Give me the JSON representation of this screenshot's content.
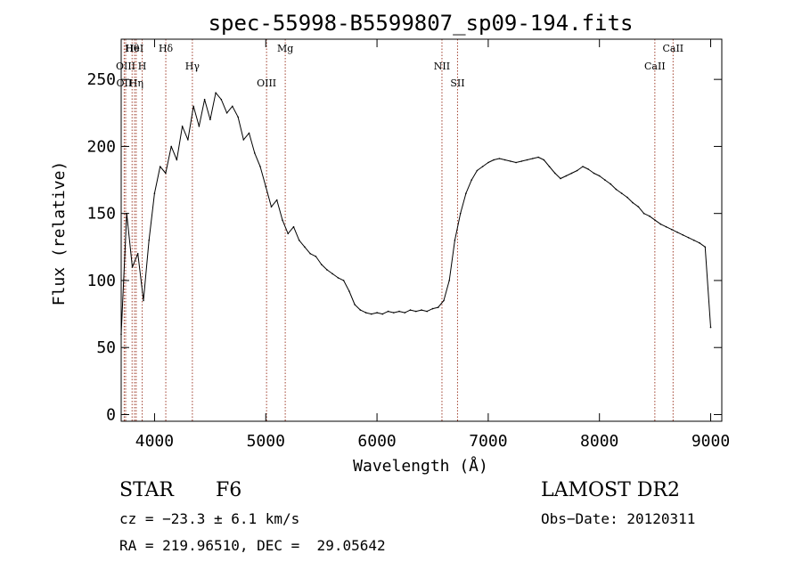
{
  "chart_data": {
    "type": "line",
    "title": "spec-55998-B5599807_sp09-194.fits",
    "xlabel": "Wavelength (Å)",
    "ylabel": "Flux (relative)",
    "xlim": [
      3700,
      9100
    ],
    "ylim": [
      -5,
      280
    ],
    "xticks": [
      4000,
      5000,
      6000,
      7000,
      8000,
      9000
    ],
    "yticks": [
      0,
      50,
      100,
      150,
      200,
      250
    ],
    "grid": false,
    "series": [
      {
        "color": "#000000",
        "x": [
          3700,
          3750,
          3800,
          3850,
          3900,
          3950,
          4000,
          4050,
          4100,
          4150,
          4200,
          4250,
          4300,
          4350,
          4400,
          4450,
          4500,
          4550,
          4600,
          4650,
          4700,
          4750,
          4800,
          4850,
          4900,
          4950,
          5000,
          5050,
          5100,
          5150,
          5200,
          5250,
          5300,
          5350,
          5400,
          5450,
          5500,
          5550,
          5600,
          5650,
          5700,
          5750,
          5800,
          5850,
          5900,
          5950,
          6000,
          6050,
          6100,
          6150,
          6200,
          6250,
          6300,
          6350,
          6400,
          6450,
          6500,
          6550,
          6600,
          6650,
          6700,
          6750,
          6800,
          6850,
          6900,
          6950,
          7000,
          7050,
          7100,
          7150,
          7200,
          7250,
          7300,
          7350,
          7400,
          7450,
          7500,
          7550,
          7600,
          7650,
          7700,
          7750,
          7800,
          7850,
          7900,
          7950,
          8000,
          8050,
          8100,
          8150,
          8200,
          8250,
          8300,
          8350,
          8400,
          8450,
          8500,
          8550,
          8600,
          8650,
          8700,
          8750,
          8800,
          8850,
          8900,
          8950,
          9000
        ],
        "y": [
          60,
          150,
          110,
          120,
          85,
          130,
          165,
          185,
          180,
          200,
          190,
          215,
          205,
          230,
          215,
          235,
          220,
          240,
          235,
          225,
          230,
          222,
          205,
          210,
          195,
          185,
          170,
          155,
          160,
          145,
          135,
          140,
          130,
          125,
          120,
          118,
          112,
          108,
          105,
          102,
          100,
          92,
          82,
          78,
          76,
          75,
          76,
          75,
          77,
          76,
          77,
          76,
          78,
          77,
          78,
          77,
          79,
          80,
          85,
          100,
          130,
          150,
          165,
          175,
          182,
          185,
          188,
          190,
          191,
          190,
          189,
          188,
          189,
          190,
          191,
          192,
          190,
          185,
          180,
          176,
          178,
          180,
          182,
          185,
          183,
          180,
          178,
          175,
          172,
          168,
          165,
          162,
          158,
          155,
          150,
          148,
          145,
          142,
          140,
          138,
          136,
          134,
          132,
          130,
          128,
          125,
          65
        ]
      }
    ],
    "annotations": [
      {
        "label": "Hθ",
        "x": 3798
      },
      {
        "label": "H",
        "x": 3889
      },
      {
        "label": "OII",
        "x": 3727
      },
      {
        "label": "HeI",
        "x": 3820
      },
      {
        "label": "OIII",
        "x": 3740
      },
      {
        "label": "Hη",
        "x": 3835
      },
      {
        "label": "Hδ",
        "x": 4101
      },
      {
        "label": "Hγ",
        "x": 4340
      },
      {
        "label": "OIII",
        "x": 5007
      },
      {
        "label": "Mg",
        "x": 5175
      },
      {
        "label": "NII",
        "x": 6584
      },
      {
        "label": "SII",
        "x": 6724
      },
      {
        "label": "CaII",
        "x": 8662
      },
      {
        "label": "CaII",
        "x": 8498
      }
    ]
  },
  "info": {
    "class_label": "STAR",
    "subclass": "F6",
    "survey": "LAMOST DR2",
    "cz": "cz = −23.3 ± 6.1 km/s",
    "obs_date": "Obs−Date: 20120311",
    "coords": "RA = 219.96510, DEC =  29.05642"
  }
}
